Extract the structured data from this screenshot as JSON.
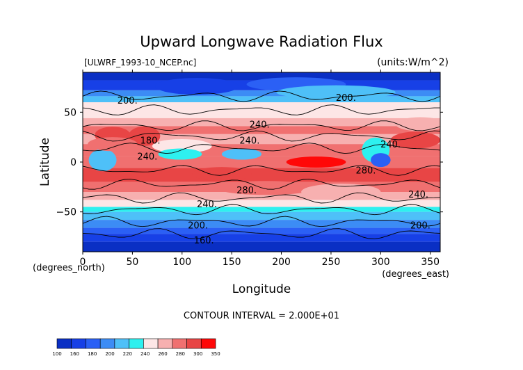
{
  "chart_data": {
    "type": "heatmap",
    "title": "Upward Longwave Radiation Flux",
    "subtitle_left": "[ULWRF_1993-10_NCEP.nc]",
    "subtitle_right": "(units:W/m^2)",
    "xlabel": "Longitude",
    "ylabel": "Latitude",
    "x_unit_label": "(degrees_east)",
    "y_unit_label": "(degrees_north)",
    "xlim": [
      0,
      360
    ],
    "ylim": [
      -90,
      90
    ],
    "x_ticks": [
      0,
      50,
      100,
      150,
      200,
      250,
      300,
      350
    ],
    "y_ticks": [
      50,
      0,
      -50
    ],
    "contour_interval_label": "CONTOUR INTERVAL = 2.000E+01",
    "contour_labels": [
      {
        "text": "200.",
        "lon": 45,
        "lat": 62
      },
      {
        "text": "200.",
        "lon": 265,
        "lat": 65
      },
      {
        "text": "240.",
        "lon": 178,
        "lat": 38
      },
      {
        "text": "240.",
        "lon": 168,
        "lat": 22
      },
      {
        "text": "180.",
        "lon": 68,
        "lat": 22
      },
      {
        "text": "240.",
        "lon": 65,
        "lat": 6
      },
      {
        "text": "240.",
        "lon": 310,
        "lat": 18
      },
      {
        "text": "280.",
        "lon": 285,
        "lat": -8
      },
      {
        "text": "280.",
        "lon": 165,
        "lat": -28
      },
      {
        "text": "240.",
        "lon": 125,
        "lat": -42
      },
      {
        "text": "240.",
        "lon": 338,
        "lat": -32
      },
      {
        "text": "200.",
        "lon": 116,
        "lat": -63
      },
      {
        "text": "200.",
        "lon": 340,
        "lat": -63
      },
      {
        "text": "160.",
        "lon": 122,
        "lat": -78
      }
    ],
    "colorbar": {
      "levels": [
        "100",
        "160",
        "180",
        "200",
        "220",
        "240",
        "260",
        "280",
        "300",
        "350"
      ],
      "colors": [
        "#0a2fc4",
        "#1740e6",
        "#2b60f5",
        "#3c8cf5",
        "#4ec0f8",
        "#2ef0ef",
        "#fde6e6",
        "#f7b0b0",
        "#f07070",
        "#e84545",
        "#ff0808"
      ]
    }
  }
}
